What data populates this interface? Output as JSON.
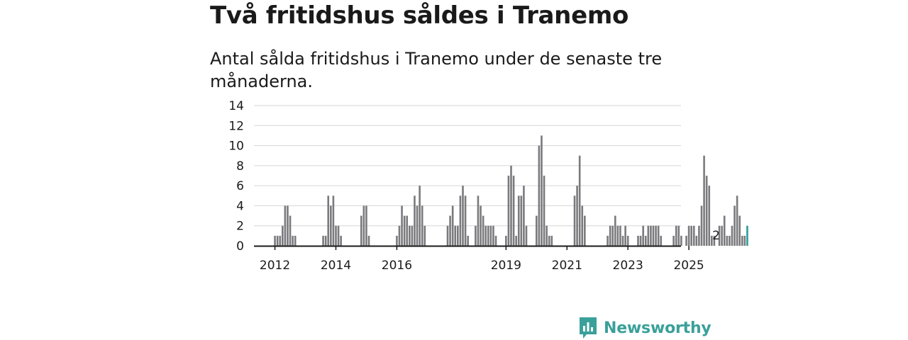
{
  "title": "Två fritidshus såldes i Tranemo",
  "subtitle": "Antal sålda fritidshus i Tranemo under de senaste tre månaderna.",
  "brand": "Newsworthy",
  "colors": {
    "bar": "#7a7a7e",
    "highlight": "#2a9d9a",
    "grid": "#d6d6d6",
    "axis": "#1a1a1a",
    "brand": "#3aa09a"
  },
  "chart_data": {
    "type": "bar",
    "title": "Två fritidshus såldes i Tranemo",
    "xlabel": "",
    "ylabel": "",
    "ylim": [
      0,
      14
    ],
    "yticks": [
      0,
      2,
      4,
      6,
      8,
      10,
      12,
      14
    ],
    "xticks": [
      "2012",
      "2014",
      "2016",
      "2019",
      "2021",
      "2023",
      "2025"
    ],
    "xtick_months": [
      7,
      31,
      55,
      98,
      122,
      146,
      170
    ],
    "start": "2011-06",
    "grid": true,
    "annotation": {
      "text": "2",
      "month_index": 181
    },
    "values": [
      0,
      0,
      0,
      0,
      0,
      0,
      0,
      1,
      1,
      1,
      2,
      4,
      4,
      3,
      1,
      1,
      0,
      0,
      0,
      0,
      0,
      0,
      0,
      0,
      0,
      0,
      1,
      1,
      5,
      4,
      5,
      2,
      2,
      1,
      0,
      0,
      0,
      0,
      0,
      0,
      0,
      3,
      4,
      4,
      1,
      0,
      0,
      0,
      0,
      0,
      0,
      0,
      0,
      0,
      0,
      1,
      2,
      4,
      3,
      3,
      2,
      2,
      5,
      4,
      6,
      4,
      2,
      0,
      0,
      0,
      0,
      0,
      0,
      0,
      0,
      2,
      3,
      4,
      2,
      2,
      5,
      6,
      5,
      1,
      0,
      0,
      2,
      5,
      4,
      3,
      2,
      2,
      2,
      2,
      1,
      0,
      0,
      0,
      1,
      7,
      8,
      7,
      1,
      5,
      5,
      6,
      2,
      0,
      0,
      0,
      3,
      10,
      11,
      7,
      2,
      1,
      1,
      0,
      0,
      0,
      0,
      0,
      0,
      0,
      0,
      5,
      6,
      9,
      4,
      3,
      0,
      0,
      0,
      0,
      0,
      0,
      0,
      0,
      1,
      2,
      2,
      3,
      2,
      2,
      1,
      2,
      1,
      0,
      0,
      0,
      1,
      1,
      2,
      1,
      2,
      2,
      2,
      2,
      2,
      1,
      0,
      0,
      0,
      0,
      1,
      2,
      2,
      1,
      0,
      1,
      2,
      2,
      2,
      1,
      2,
      4,
      9,
      7,
      6,
      1,
      1,
      0,
      2,
      2,
      3,
      1,
      1,
      2,
      4,
      5,
      3,
      1,
      1,
      2
    ]
  }
}
